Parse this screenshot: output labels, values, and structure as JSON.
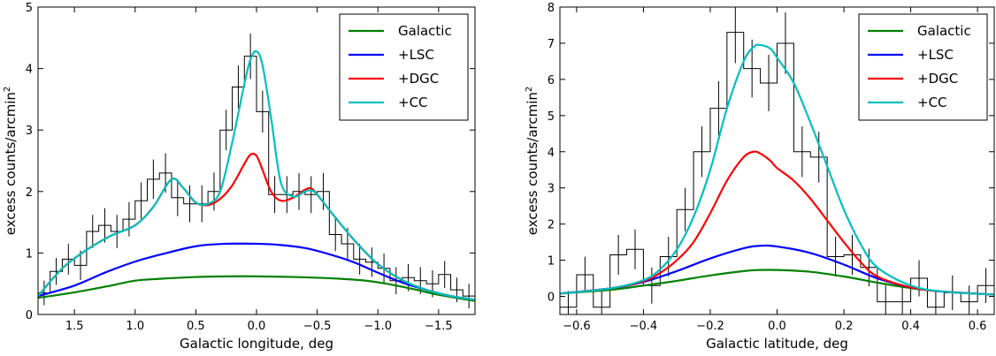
{
  "chart_data": [
    {
      "type": "line",
      "xlabel": "Galactic longitude, deg",
      "ylabel": "excess counts/arcmin",
      "ylabel_sup": "2",
      "xlim": [
        1.8,
        -1.8
      ],
      "ylim": [
        0,
        5
      ],
      "x_ticks": [
        1.5,
        1.0,
        0.5,
        0.0,
        -0.5,
        -1.0,
        -1.5
      ],
      "x_tick_labels": [
        "1.5",
        "1.0",
        "0.5",
        "0.0",
        "−0.5",
        "−1.0",
        "−1.5"
      ],
      "y_ticks": [
        0,
        1,
        2,
        3,
        4,
        5
      ],
      "y_tick_labels": [
        "0",
        "1",
        "2",
        "3",
        "4",
        "5"
      ],
      "legend_position": "top-right",
      "series": [
        {
          "name": "Galactic",
          "color": "#008000",
          "x": [
            1.8,
            1.5,
            1.2,
            1.0,
            0.8,
            0.5,
            0.25,
            0.0,
            -0.3,
            -0.6,
            -0.9,
            -1.1,
            -1.3,
            -1.5,
            -1.8
          ],
          "y": [
            0.27,
            0.36,
            0.47,
            0.55,
            0.58,
            0.61,
            0.62,
            0.62,
            0.61,
            0.59,
            0.55,
            0.49,
            0.41,
            0.32,
            0.22
          ]
        },
        {
          "name": "+LSC",
          "color": "#0000ff",
          "x": [
            1.8,
            1.5,
            1.25,
            1.0,
            0.8,
            0.5,
            0.25,
            0.0,
            -0.2,
            -0.4,
            -0.6,
            -0.8,
            -1.0,
            -1.2,
            -1.4,
            -1.6,
            -1.8
          ],
          "y": [
            0.3,
            0.47,
            0.68,
            0.86,
            0.97,
            1.11,
            1.15,
            1.15,
            1.13,
            1.08,
            0.98,
            0.85,
            0.68,
            0.52,
            0.4,
            0.3,
            0.24
          ]
        },
        {
          "name": "+DGC",
          "color": "#ff0000",
          "x": [
            1.8,
            1.6,
            1.4,
            1.2,
            1.0,
            0.85,
            0.7,
            0.6,
            0.5,
            0.4,
            0.3,
            0.2,
            0.1,
            0.05,
            0.0,
            -0.05,
            -0.12,
            -0.2,
            -0.3,
            -0.4,
            -0.45,
            -0.5,
            -0.6,
            -0.8,
            -1.0,
            -1.2,
            -1.4,
            -1.6,
            -1.8
          ],
          "y": [
            0.3,
            0.75,
            1.05,
            1.28,
            1.45,
            1.75,
            2.2,
            2.05,
            1.82,
            1.78,
            1.88,
            2.1,
            2.45,
            2.6,
            2.58,
            2.35,
            2.0,
            1.85,
            1.9,
            2.03,
            2.05,
            1.95,
            1.7,
            1.22,
            0.82,
            0.56,
            0.4,
            0.3,
            0.24
          ]
        },
        {
          "name": "+CC",
          "color": "#00bfbf",
          "x": [
            1.8,
            1.6,
            1.4,
            1.2,
            1.0,
            0.85,
            0.7,
            0.6,
            0.5,
            0.4,
            0.3,
            0.2,
            0.1,
            0.05,
            0.0,
            -0.05,
            -0.12,
            -0.2,
            -0.3,
            -0.4,
            -0.45,
            -0.5,
            -0.6,
            -0.8,
            -1.0,
            -1.2,
            -1.4,
            -1.6,
            -1.8
          ],
          "y": [
            0.3,
            0.75,
            1.05,
            1.28,
            1.45,
            1.75,
            2.2,
            2.05,
            1.82,
            1.8,
            2.0,
            2.8,
            3.75,
            4.15,
            4.28,
            4.05,
            3.2,
            2.15,
            1.92,
            2.0,
            2.02,
            1.95,
            1.7,
            1.22,
            0.82,
            0.56,
            0.4,
            0.3,
            0.24
          ]
        }
      ],
      "histogram": {
        "color": "#000000",
        "bin_edges": [
          1.8,
          1.7,
          1.6,
          1.5,
          1.4,
          1.3,
          1.2,
          1.1,
          1.0,
          0.9,
          0.8,
          0.7,
          0.6,
          0.5,
          0.4,
          0.3,
          0.2,
          0.1,
          0.0,
          -0.1,
          -0.2,
          -0.3,
          -0.4,
          -0.5,
          -0.6,
          -0.7,
          -0.8,
          -0.9,
          -1.0,
          -1.1,
          -1.2,
          -1.3,
          -1.4,
          -1.5,
          -1.6,
          -1.7,
          -1.8
        ],
        "values": [
          0.35,
          0.7,
          0.9,
          0.8,
          1.35,
          1.45,
          1.35,
          1.55,
          1.85,
          2.2,
          2.3,
          1.9,
          1.8,
          1.8,
          2.0,
          3.0,
          3.7,
          4.2,
          3.3,
          1.95,
          1.95,
          2.0,
          1.95,
          2.0,
          1.3,
          1.15,
          0.9,
          0.85,
          0.75,
          0.55,
          0.6,
          0.55,
          0.5,
          0.65,
          0.4,
          0.3
        ],
        "errors": [
          0.2,
          0.22,
          0.25,
          0.24,
          0.27,
          0.28,
          0.27,
          0.28,
          0.3,
          0.32,
          0.32,
          0.3,
          0.3,
          0.3,
          0.31,
          0.33,
          0.35,
          0.37,
          0.34,
          0.3,
          0.3,
          0.3,
          0.3,
          0.3,
          0.27,
          0.26,
          0.25,
          0.24,
          0.24,
          0.22,
          0.22,
          0.22,
          0.22,
          0.22,
          0.2,
          0.2
        ]
      }
    },
    {
      "type": "line",
      "xlabel": "Galactic latitude, deg",
      "ylabel": "excess counts/arcmin",
      "ylabel_sup": "2",
      "xlim": [
        -0.65,
        0.65
      ],
      "ylim": [
        -0.5,
        8
      ],
      "x_ticks": [
        -0.6,
        -0.4,
        -0.2,
        0.0,
        0.2,
        0.4,
        0.6
      ],
      "x_tick_labels": [
        "−0.6",
        "−0.4",
        "−0.2",
        "0.0",
        "0.2",
        "0.4",
        "0.6"
      ],
      "y_ticks": [
        0,
        1,
        2,
        3,
        4,
        5,
        6,
        7,
        8
      ],
      "y_tick_labels": [
        "0",
        "1",
        "2",
        "3",
        "4",
        "5",
        "6",
        "7",
        "8"
      ],
      "legend_position": "top-right",
      "series": [
        {
          "name": "Galactic",
          "color": "#008000",
          "x": [
            -0.65,
            -0.5,
            -0.4,
            -0.3,
            -0.2,
            -0.1,
            -0.05,
            0.0,
            0.1,
            0.2,
            0.3,
            0.4,
            0.5,
            0.65
          ],
          "y": [
            0.08,
            0.18,
            0.3,
            0.43,
            0.58,
            0.7,
            0.73,
            0.73,
            0.68,
            0.55,
            0.38,
            0.23,
            0.13,
            0.05
          ]
        },
        {
          "name": "+LSC",
          "color": "#0000ff",
          "x": [
            -0.65,
            -0.5,
            -0.4,
            -0.3,
            -0.2,
            -0.1,
            -0.05,
            0.0,
            0.1,
            0.2,
            0.3,
            0.4,
            0.5,
            0.65
          ],
          "y": [
            0.08,
            0.22,
            0.4,
            0.7,
            1.05,
            1.33,
            1.4,
            1.38,
            1.2,
            0.88,
            0.5,
            0.25,
            0.13,
            0.05
          ]
        },
        {
          "name": "+DGC",
          "color": "#ff0000",
          "x": [
            -0.65,
            -0.5,
            -0.4,
            -0.35,
            -0.3,
            -0.25,
            -0.2,
            -0.15,
            -0.1,
            -0.07,
            -0.05,
            -0.02,
            0.0,
            0.05,
            0.1,
            0.15,
            0.2,
            0.25,
            0.3,
            0.4,
            0.5,
            0.65
          ],
          "y": [
            0.08,
            0.22,
            0.42,
            0.65,
            1.0,
            1.5,
            2.3,
            3.2,
            3.85,
            4.0,
            3.95,
            3.75,
            3.55,
            3.2,
            2.7,
            2.1,
            1.5,
            0.95,
            0.55,
            0.25,
            0.13,
            0.05
          ]
        },
        {
          "name": "+CC",
          "color": "#00bfbf",
          "x": [
            -0.65,
            -0.5,
            -0.4,
            -0.35,
            -0.3,
            -0.25,
            -0.2,
            -0.15,
            -0.1,
            -0.07,
            -0.05,
            -0.02,
            0.0,
            0.05,
            0.1,
            0.15,
            0.2,
            0.25,
            0.3,
            0.4,
            0.5,
            0.65
          ],
          "y": [
            0.08,
            0.22,
            0.45,
            0.75,
            1.3,
            2.2,
            3.5,
            5.2,
            6.5,
            6.9,
            6.95,
            6.85,
            6.6,
            5.9,
            4.8,
            3.6,
            2.4,
            1.45,
            0.8,
            0.3,
            0.13,
            0.05
          ]
        }
      ],
      "histogram": {
        "color": "#000000",
        "bin_edges": [
          -0.65,
          -0.6,
          -0.55,
          -0.5,
          -0.45,
          -0.4,
          -0.35,
          -0.3,
          -0.25,
          -0.2,
          -0.15,
          -0.1,
          -0.05,
          0.0,
          0.05,
          0.1,
          0.15,
          0.2,
          0.25,
          0.3,
          0.35,
          0.4,
          0.45,
          0.5,
          0.55,
          0.6,
          0.65
        ],
        "values": [
          -0.3,
          0.6,
          -0.3,
          1.15,
          1.3,
          0.3,
          1.1,
          2.4,
          4.0,
          5.2,
          7.3,
          6.3,
          5.9,
          7.0,
          4.0,
          3.85,
          1.1,
          1.15,
          0.8,
          -0.15,
          -0.15,
          0.5,
          -0.3,
          0.1,
          -0.15,
          0.3
        ],
        "errors": [
          0.45,
          0.5,
          0.45,
          0.55,
          0.55,
          0.5,
          0.55,
          0.6,
          0.7,
          0.75,
          0.85,
          0.8,
          0.78,
          0.85,
          0.7,
          0.7,
          0.55,
          0.55,
          0.52,
          0.45,
          0.45,
          0.5,
          0.45,
          0.48,
          0.45,
          0.48
        ]
      }
    }
  ]
}
